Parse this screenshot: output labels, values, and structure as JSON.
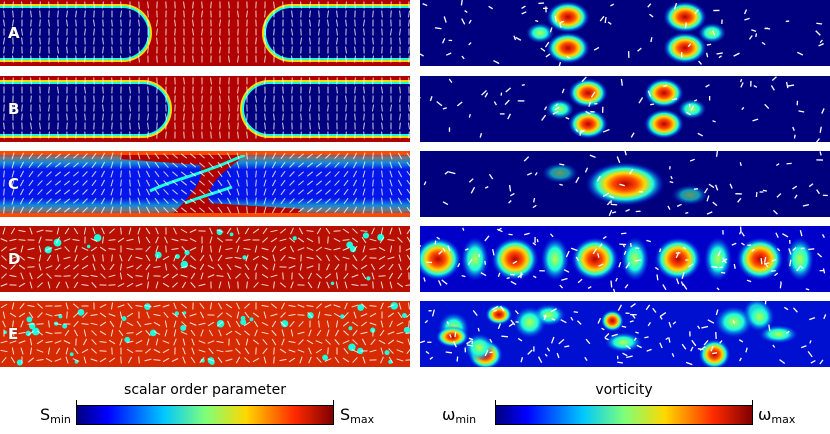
{
  "rows": [
    {
      "label": "A"
    },
    {
      "label": "B"
    },
    {
      "label": "C"
    },
    {
      "label": "D"
    },
    {
      "label": "E"
    }
  ],
  "colorbars": {
    "left": {
      "title": "scalar order parameter",
      "min_base": "S",
      "min_sub": "min",
      "max_base": "S",
      "max_sub": "max"
    },
    "right": {
      "title": "vorticity",
      "min_base": "ω",
      "min_sub": "min",
      "max_base": "ω",
      "max_sub": "max"
    }
  },
  "colors": {
    "jet": [
      "#00007f",
      "#0000ff",
      "#00a0ff",
      "#19ffde",
      "#b5ff42",
      "#ffd800",
      "#ff4a00",
      "#b40000",
      "#7f0000"
    ]
  }
}
